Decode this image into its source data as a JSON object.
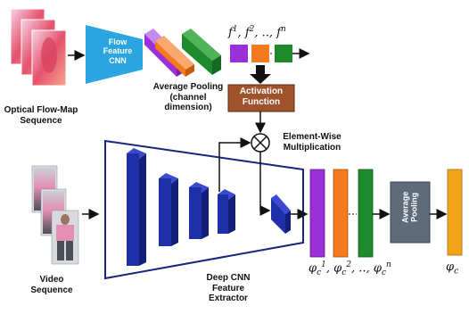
{
  "labels": {
    "flow_input": "Optical Flow-Map\nSequence",
    "flow_cnn": "Flow\nFeature\nCNN",
    "avg_pool_channel": "Average Pooling\n(channel\ndimension)",
    "flow_features_prefix": "f",
    "activation": "Activation\nFunction",
    "element_wise": "Element-Wise\nMultiplication",
    "video_input": "Video\nSequence",
    "deep_cnn": "Deep CNN\nFeature\nExtractor",
    "avg_pool_final": "Average\nPooling",
    "phi": "φ"
  },
  "colors": {
    "flow_cnn": "#2aa5e0",
    "purple": "#9b30d9",
    "orange": "#f47a1f",
    "green": "#1f8a2c",
    "activation": "#a0522d",
    "pooling_box": "#5f6b7a",
    "cnn_block": "#1f2fa8",
    "final_bar": "#f2a31a",
    "frame_outline": "#1a237e"
  },
  "icons": {
    "multiply": "circle-times-icon",
    "flow_frames": "flow-map-thumbnails",
    "video_frames": "pedestrian-thumbnails"
  }
}
